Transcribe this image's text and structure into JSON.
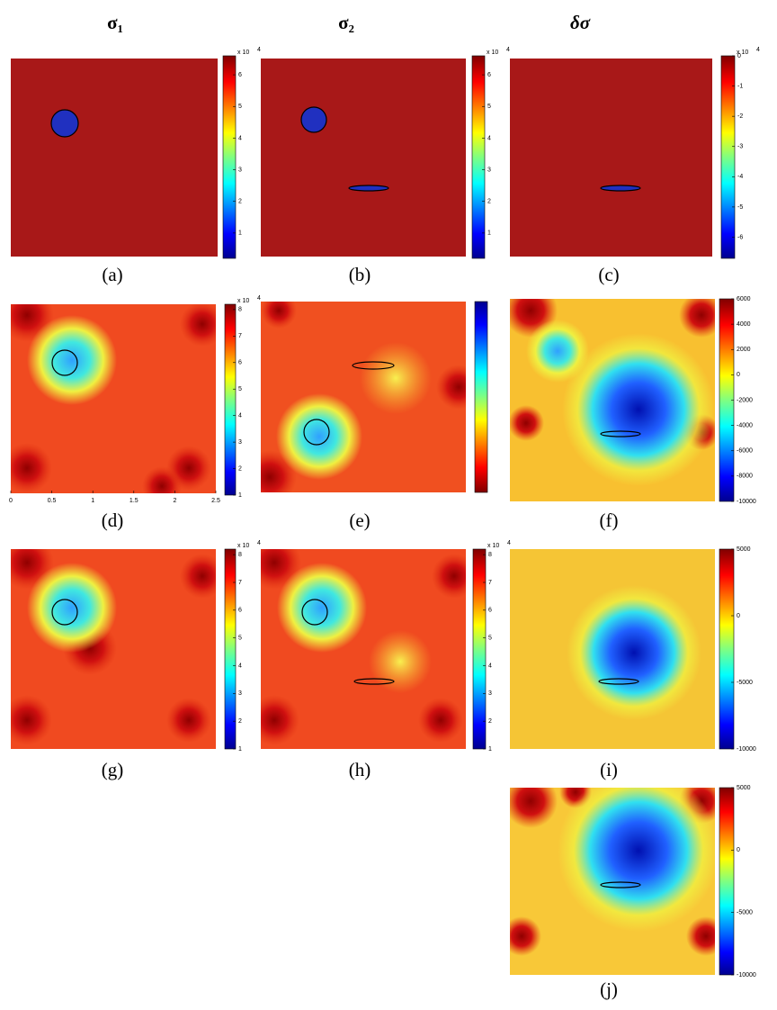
{
  "column_headers": [
    "σ₁",
    "σ₂",
    "δσ"
  ],
  "panels": [
    {
      "label": "(a)",
      "colorbar": {
        "lim": [
          0.2,
          6.6
        ],
        "ticks": [
          1,
          2,
          3,
          4,
          5,
          6
        ],
        "multiplier": "x 10",
        "exponent": "4"
      }
    },
    {
      "label": "(b)",
      "colorbar": {
        "lim": [
          0.2,
          6.6
        ],
        "ticks": [
          1,
          2,
          3,
          4,
          5,
          6
        ],
        "multiplier": "x 10",
        "exponent": "4"
      }
    },
    {
      "label": "(c)",
      "colorbar": {
        "lim": [
          -6.7,
          0
        ],
        "ticks": [
          0,
          -1,
          -2,
          -3,
          -4,
          -5,
          -6
        ],
        "multiplier": "x 10",
        "exponent": "4"
      }
    },
    {
      "label": "(d)",
      "colorbar": {
        "lim": [
          1,
          8.2
        ],
        "ticks": [
          1,
          2,
          3,
          4,
          5,
          6,
          7,
          8
        ],
        "multiplier": "x 10",
        "exponent": "4"
      },
      "x_axis": {
        "lim": [
          0,
          2.5
        ],
        "ticks": [
          0,
          0.5,
          1,
          1.5,
          2,
          2.5
        ]
      }
    },
    {
      "label": "(e)",
      "colorbar": {
        "reversed": true
      }
    },
    {
      "label": "(f)",
      "colorbar": {
        "lim": [
          -10000,
          6000
        ],
        "ticks": [
          6000,
          4000,
          2000,
          0,
          -2000,
          -4000,
          -6000,
          -8000,
          -10000
        ]
      }
    },
    {
      "label": "(g)",
      "colorbar": {
        "lim": [
          1,
          8.2
        ],
        "ticks": [
          1,
          2,
          3,
          4,
          5,
          6,
          7,
          8
        ],
        "multiplier": "x 10",
        "exponent": "4"
      }
    },
    {
      "label": "(h)",
      "colorbar": {
        "lim": [
          1,
          8.2
        ],
        "ticks": [
          1,
          2,
          3,
          4,
          5,
          6,
          7,
          8
        ],
        "multiplier": "x 10",
        "exponent": "4"
      }
    },
    {
      "label": "(i)",
      "colorbar": {
        "lim": [
          -10000,
          5000
        ],
        "ticks": [
          5000,
          0,
          -5000,
          -10000
        ]
      }
    },
    {
      "label": "(j)",
      "colorbar": {
        "lim": [
          -10000,
          5000
        ],
        "ticks": [
          5000,
          0,
          -5000,
          -10000
        ]
      }
    }
  ]
}
